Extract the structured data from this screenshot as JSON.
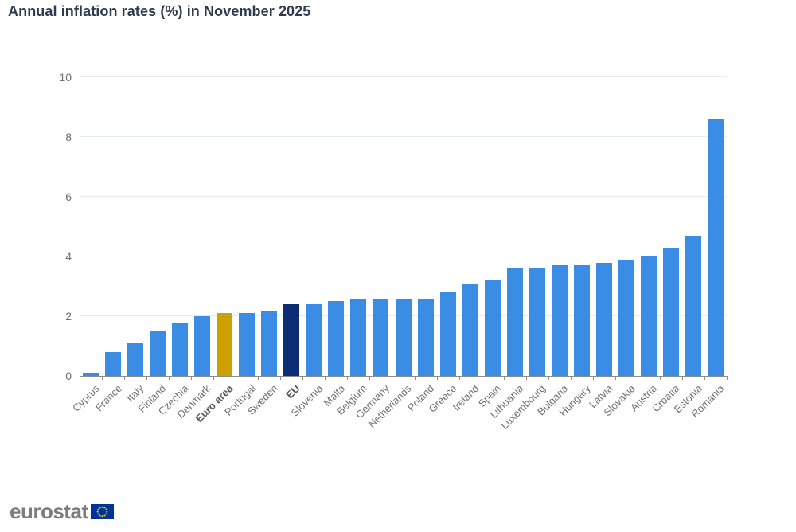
{
  "title": "Annual inflation rates (%) in November 2025",
  "footer": {
    "logo_text": "eurostat"
  },
  "colors": {
    "bar_default": "#3a8ce4",
    "bar_euro_area": "#cca000",
    "bar_eu": "#0c2d73",
    "title_text": "#2e3a4d",
    "axis_label": "#6f6f6f",
    "gridline": "#e4e9f3",
    "axis_line": "#8c8c8c",
    "logo_text": "#7d7d7d",
    "flag_blue": "#003399",
    "flag_stars": "#ffcc00"
  },
  "chart_data": {
    "type": "bar",
    "title": "Annual inflation rates (%) in November 2025",
    "xlabel": "",
    "ylabel": "",
    "ylim": [
      0,
      10
    ],
    "yticks": [
      0,
      2,
      4,
      6,
      8,
      10
    ],
    "grid": true,
    "legend": "none",
    "categories": [
      "Cyprus",
      "France",
      "Italy",
      "Finland",
      "Czechia",
      "Denmark",
      "Euro area",
      "Portugal",
      "Sweden",
      "EU",
      "Slovenia",
      "Malta",
      "Belgium",
      "Germany",
      "Netherlands",
      "Poland",
      "Greece",
      "Ireland",
      "Spain",
      "Lithuania",
      "Luxembourg",
      "Bulgaria",
      "Hungary",
      "Latvia",
      "Slovakia",
      "Austria",
      "Croatia",
      "Estonia",
      "Romania"
    ],
    "values": [
      0.1,
      0.8,
      1.1,
      1.5,
      1.8,
      2.0,
      2.1,
      2.1,
      2.2,
      2.4,
      2.4,
      2.5,
      2.6,
      2.6,
      2.6,
      2.6,
      2.8,
      3.1,
      3.2,
      3.6,
      3.6,
      3.7,
      3.7,
      3.8,
      3.9,
      4.0,
      4.3,
      4.7,
      8.6
    ],
    "highlight": {
      "Euro area": "bar_euro_area",
      "EU": "bar_eu"
    },
    "bold_categories": [
      "Euro area",
      "EU"
    ]
  }
}
